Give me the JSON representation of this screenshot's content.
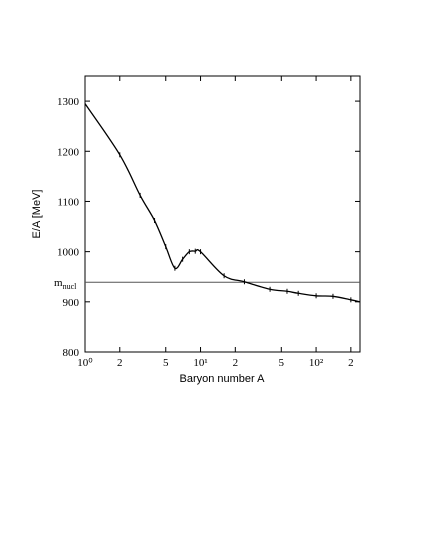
{
  "chart_data": {
    "type": "line",
    "xlabel": "Baryon number A",
    "ylabel": "E/A [MeV]",
    "x": [
      1,
      2,
      3,
      4,
      5,
      6,
      7,
      8,
      9,
      10,
      16,
      24,
      40,
      56,
      70,
      100,
      140,
      200,
      240
    ],
    "series": [
      {
        "color": "#000000",
        "values": [
          1295,
          1193,
          1112,
          1062,
          1010,
          967,
          985,
          1000,
          1001,
          1000,
          952,
          940,
          925,
          921,
          917,
          912,
          911,
          904,
          900
        ]
      }
    ],
    "xlog": true,
    "xlim": [
      1,
      240
    ],
    "xticks": [
      {
        "value": 1,
        "label": "10⁰"
      },
      2,
      5,
      {
        "value": 10,
        "label": "10¹"
      },
      {
        "value": 20,
        "label": "2"
      },
      {
        "value": 50,
        "label": "5"
      },
      {
        "value": 100,
        "label": "10²"
      },
      {
        "value": 200,
        "label": "2"
      }
    ],
    "ylim": [
      800,
      1350
    ],
    "yticks": [
      800,
      900,
      1000,
      1100,
      1200,
      1300
    ],
    "reference_line": {
      "value": 939,
      "label": "m",
      "label_sub": "nucl"
    }
  }
}
